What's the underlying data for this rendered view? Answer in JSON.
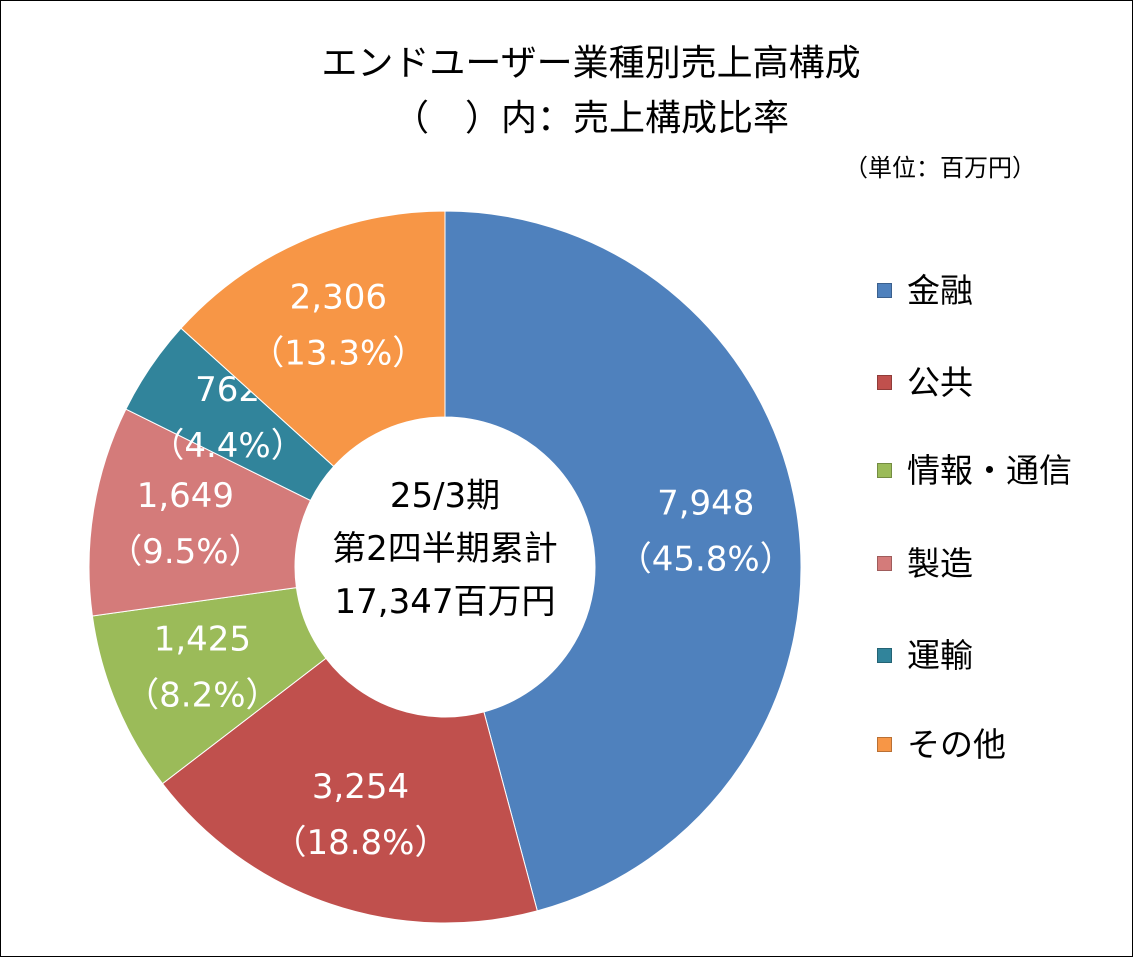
{
  "chart_data": {
    "type": "pie",
    "title": "エンドユーザー業種別売上高構成",
    "subtitle": "（　）内：売上構成比率",
    "unit_note": "（単位：百万円）",
    "center_label": [
      "25/3期",
      "第2四半期累計",
      "17,347百万円"
    ],
    "legend_position": "right",
    "slices": [
      {
        "name": "金融",
        "value": 7948,
        "value_label": "7,948",
        "percent_label": "（45.8%）",
        "color": "#4F81BD"
      },
      {
        "name": "公共",
        "value": 3254,
        "value_label": "3,254",
        "percent_label": "（18.8%）",
        "color": "#C0504D"
      },
      {
        "name": "情報・通信",
        "value": 1425,
        "value_label": "1,425",
        "percent_label": "（8.2%）",
        "color": "#9BBB59"
      },
      {
        "name": "製造",
        "value": 1649,
        "value_label": "1,649",
        "percent_label": "（9.5%）",
        "color": "#D47B7A"
      },
      {
        "name": "運輸",
        "value": 762,
        "value_label": "762",
        "percent_label": "（4.4%）",
        "color": "#31849B"
      },
      {
        "name": "その他",
        "value": 2306,
        "value_label": "2,306",
        "percent_label": "（13.3%）",
        "color": "#F79646"
      }
    ]
  }
}
